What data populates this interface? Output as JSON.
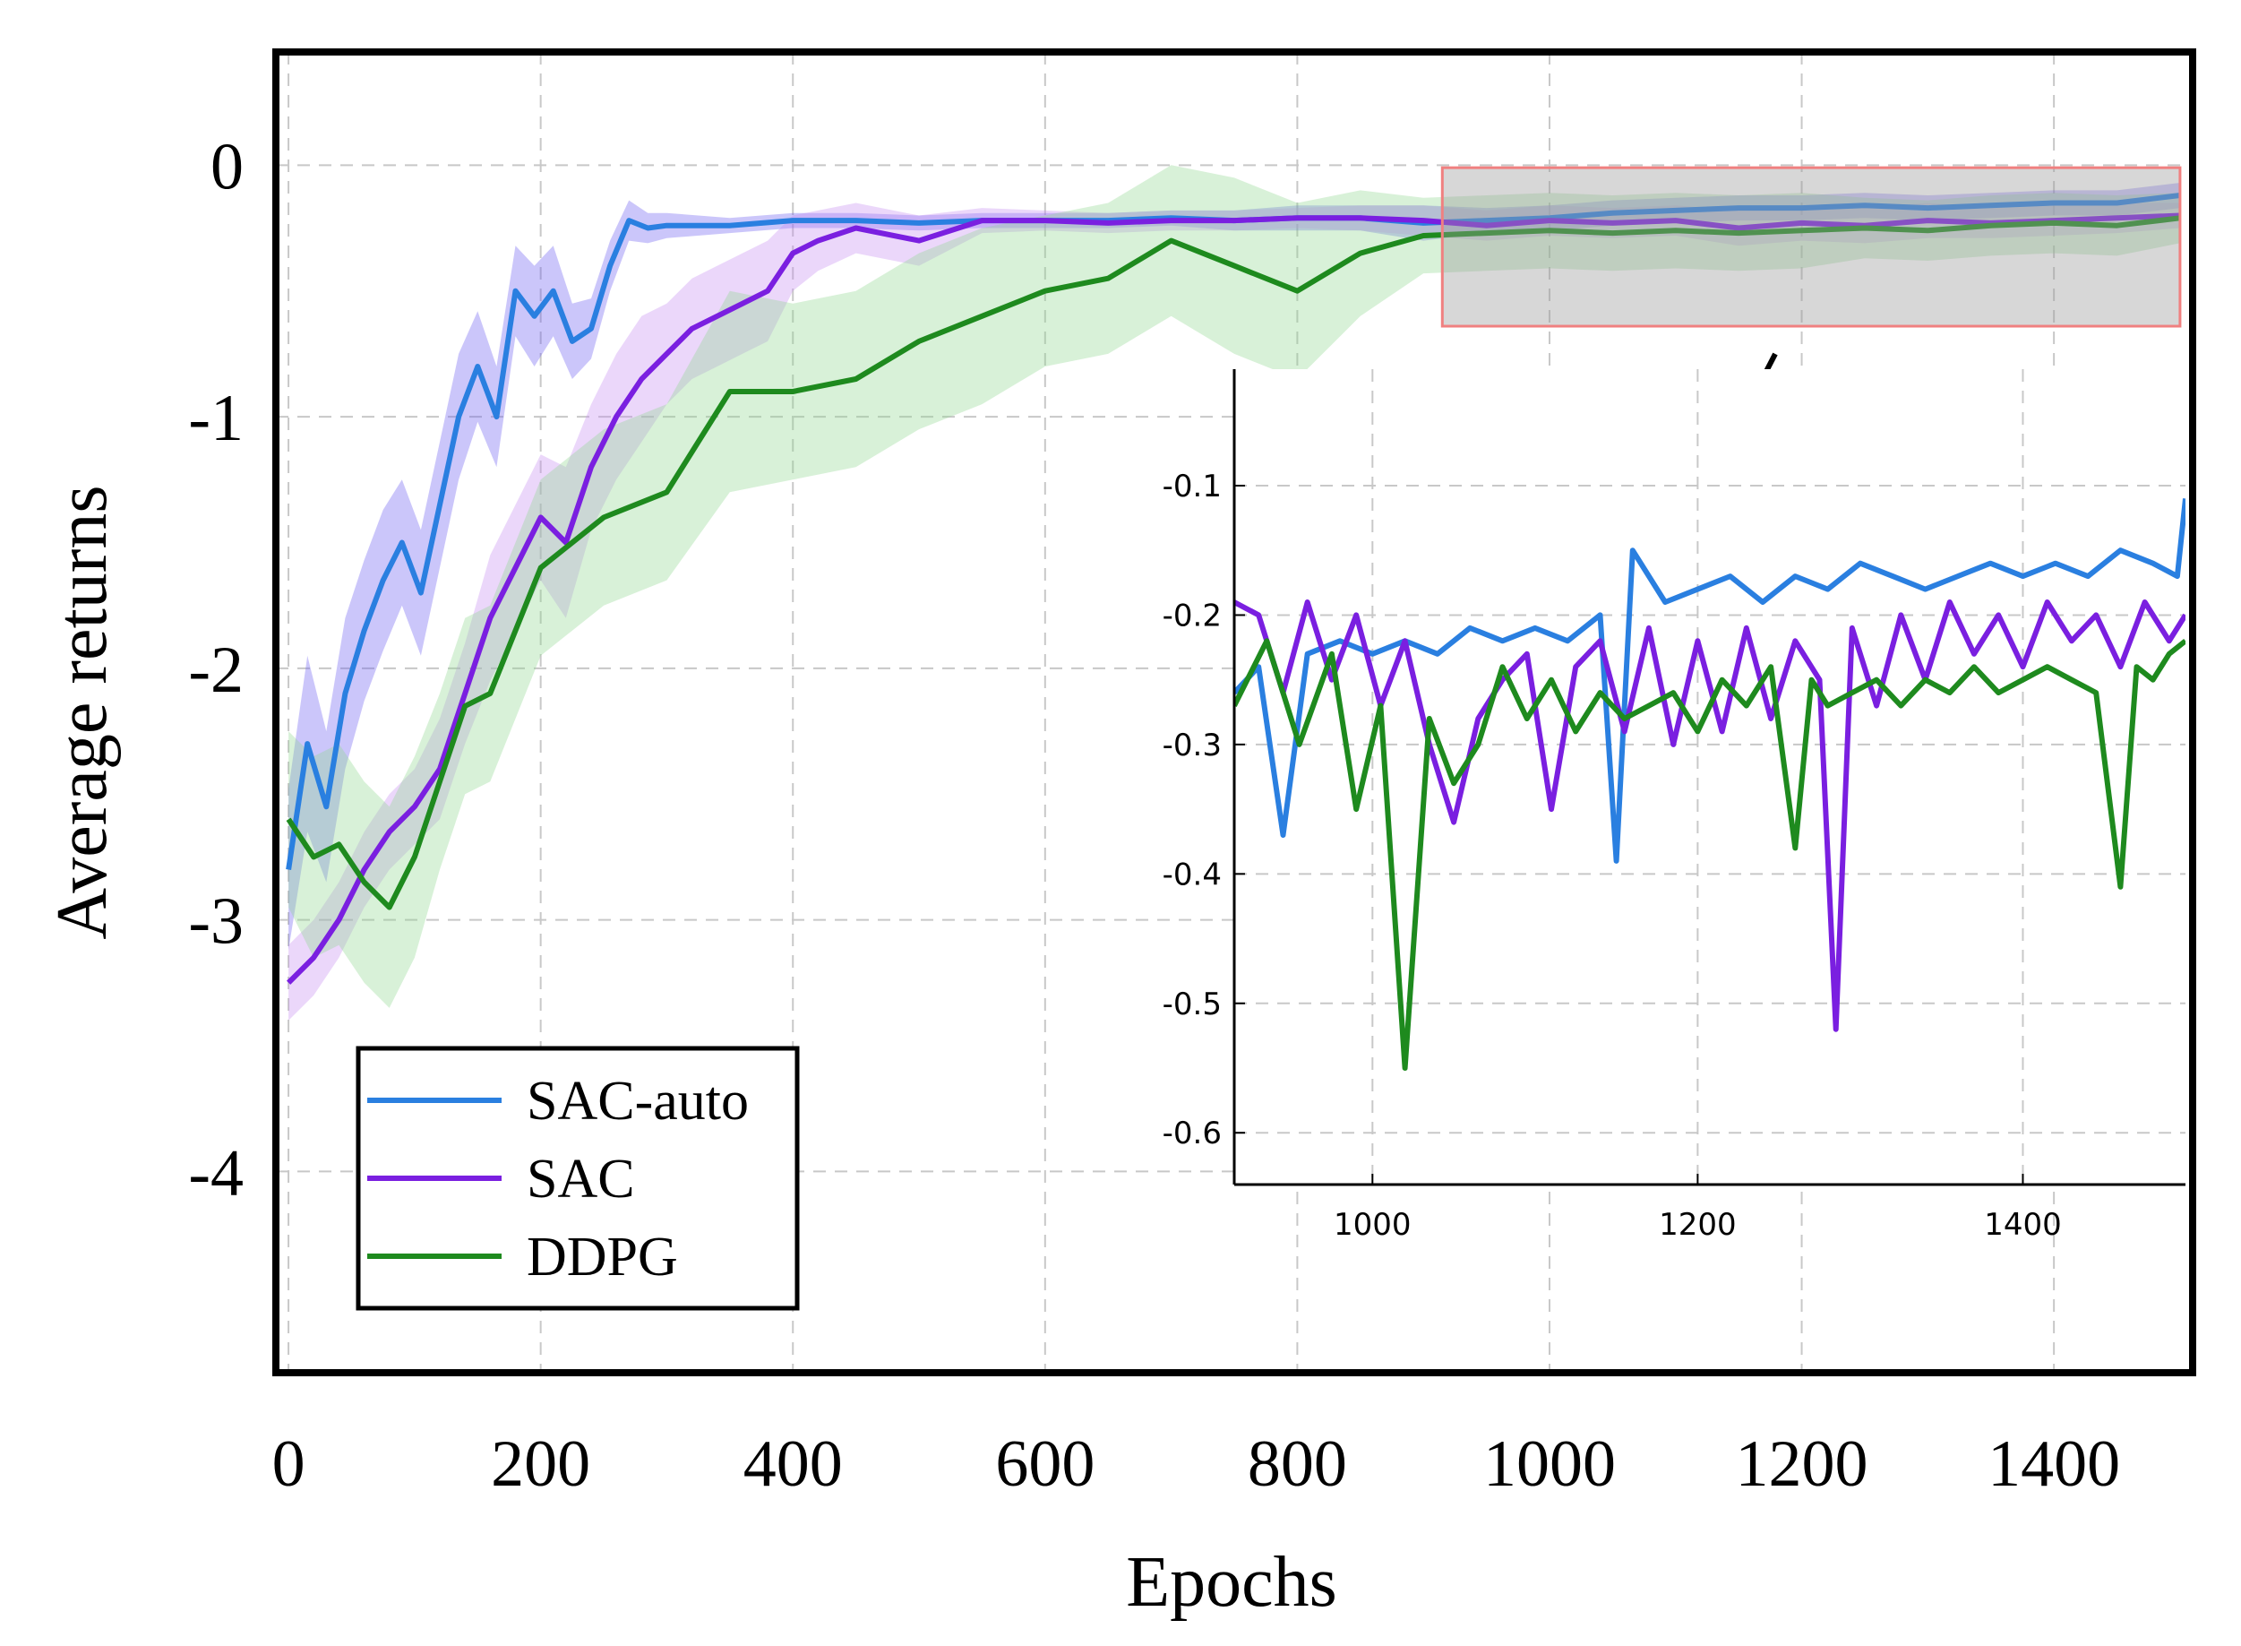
{
  "chart_data": [
    {
      "type": "line",
      "title": "",
      "xlabel": "Epochs",
      "ylabel": "Average  returns",
      "xlim": [
        -10,
        1510
      ],
      "ylim": [
        -4.8,
        0.45
      ],
      "xticks": [
        0,
        200,
        400,
        600,
        800,
        1000,
        1200,
        1400
      ],
      "xtick_labels": [
        "0",
        "200",
        "400",
        "600",
        "800",
        "1000",
        "1200",
        "1400"
      ],
      "yticks": [
        0,
        -1,
        -2,
        -3,
        -4
      ],
      "ytick_labels": [
        "0",
        "-1",
        "-2",
        "-3",
        "-4"
      ],
      "grid": true,
      "legend_position": "bottom-left",
      "highlight_region": {
        "x": [
          915,
          1500
        ],
        "y": [
          -0.64,
          -0.01
        ]
      },
      "series": [
        {
          "name": "SAC-auto",
          "color": "#2a7fe0",
          "band_color": "#6a5cf0",
          "x": [
            0,
            15,
            30,
            45,
            60,
            75,
            90,
            105,
            120,
            135,
            150,
            165,
            180,
            195,
            210,
            225,
            240,
            255,
            270,
            285,
            300,
            350,
            400,
            450,
            500,
            550,
            600,
            650,
            700,
            750,
            800,
            850,
            900,
            950,
            1000,
            1050,
            1100,
            1150,
            1200,
            1250,
            1300,
            1350,
            1400,
            1450,
            1500
          ],
          "values": [
            -2.8,
            -2.3,
            -2.55,
            -2.1,
            -1.85,
            -1.65,
            -1.5,
            -1.7,
            -1.35,
            -1.0,
            -0.8,
            -1.0,
            -0.5,
            -0.6,
            -0.5,
            -0.7,
            -0.65,
            -0.4,
            -0.22,
            -0.25,
            -0.24,
            -0.24,
            -0.22,
            -0.22,
            -0.23,
            -0.22,
            -0.22,
            -0.22,
            -0.21,
            -0.22,
            -0.21,
            -0.21,
            -0.23,
            -0.22,
            -0.21,
            -0.19,
            -0.18,
            -0.17,
            -0.17,
            -0.16,
            -0.17,
            -0.16,
            -0.15,
            -0.15,
            -0.12
          ],
          "band": [
            0.32,
            0.35,
            0.3,
            0.3,
            0.28,
            0.28,
            0.25,
            0.25,
            0.25,
            0.25,
            0.22,
            0.2,
            0.18,
            0.2,
            0.18,
            0.15,
            0.12,
            0.1,
            0.08,
            0.06,
            0.05,
            0.03,
            0.03,
            0.03,
            0.03,
            0.03,
            0.03,
            0.03,
            0.03,
            0.04,
            0.05,
            0.05,
            0.07,
            0.05,
            0.05,
            0.05,
            0.05,
            0.05,
            0.05,
            0.05,
            0.05,
            0.05,
            0.05,
            0.05,
            0.05
          ]
        },
        {
          "name": "SAC",
          "color": "#7a1fe0",
          "band_color": "#c78cf0",
          "x": [
            0,
            20,
            40,
            60,
            80,
            100,
            120,
            140,
            160,
            180,
            200,
            220,
            240,
            260,
            280,
            300,
            320,
            340,
            360,
            380,
            400,
            420,
            450,
            500,
            550,
            600,
            650,
            700,
            750,
            800,
            850,
            900,
            950,
            1000,
            1050,
            1100,
            1150,
            1200,
            1250,
            1300,
            1350,
            1400,
            1450,
            1500
          ],
          "values": [
            -3.25,
            -3.15,
            -3.0,
            -2.8,
            -2.65,
            -2.55,
            -2.4,
            -2.1,
            -1.8,
            -1.6,
            -1.4,
            -1.5,
            -1.2,
            -1.0,
            -0.85,
            -0.75,
            -0.65,
            -0.6,
            -0.55,
            -0.5,
            -0.35,
            -0.3,
            -0.25,
            -0.3,
            -0.22,
            -0.22,
            -0.23,
            -0.22,
            -0.22,
            -0.21,
            -0.21,
            -0.22,
            -0.24,
            -0.22,
            -0.23,
            -0.22,
            -0.25,
            -0.23,
            -0.24,
            -0.22,
            -0.23,
            -0.22,
            -0.21,
            -0.2
          ],
          "band": [
            0.15,
            0.15,
            0.15,
            0.15,
            0.15,
            0.15,
            0.2,
            0.2,
            0.25,
            0.25,
            0.25,
            0.3,
            0.25,
            0.25,
            0.25,
            0.2,
            0.2,
            0.2,
            0.2,
            0.2,
            0.15,
            0.12,
            0.1,
            0.1,
            0.05,
            0.04,
            0.04,
            0.04,
            0.04,
            0.04,
            0.05,
            0.06,
            0.06,
            0.06,
            0.06,
            0.06,
            0.07,
            0.07,
            0.07,
            0.07,
            0.06,
            0.06,
            0.06,
            0.05
          ]
        },
        {
          "name": "DDPG",
          "color": "#1e8a1e",
          "band_color": "#8fd88f",
          "x": [
            0,
            20,
            40,
            60,
            80,
            100,
            120,
            140,
            160,
            180,
            200,
            250,
            300,
            350,
            400,
            450,
            500,
            550,
            600,
            650,
            700,
            750,
            800,
            850,
            900,
            950,
            1000,
            1050,
            1100,
            1150,
            1200,
            1250,
            1300,
            1350,
            1400,
            1450,
            1500
          ],
          "values": [
            -2.6,
            -2.75,
            -2.7,
            -2.85,
            -2.95,
            -2.75,
            -2.45,
            -2.15,
            -2.1,
            -1.85,
            -1.6,
            -1.4,
            -1.3,
            -0.9,
            -0.9,
            -0.85,
            -0.7,
            -0.6,
            -0.5,
            -0.45,
            -0.3,
            -0.4,
            -0.5,
            -0.35,
            -0.28,
            -0.27,
            -0.26,
            -0.27,
            -0.26,
            -0.27,
            -0.26,
            -0.25,
            -0.26,
            -0.24,
            -0.23,
            -0.24,
            -0.21
          ],
          "band": [
            0.35,
            0.4,
            0.4,
            0.4,
            0.4,
            0.4,
            0.35,
            0.35,
            0.35,
            0.35,
            0.35,
            0.35,
            0.35,
            0.4,
            0.35,
            0.35,
            0.35,
            0.35,
            0.3,
            0.3,
            0.3,
            0.35,
            0.35,
            0.25,
            0.15,
            0.15,
            0.15,
            0.15,
            0.15,
            0.15,
            0.15,
            0.12,
            0.12,
            0.12,
            0.12,
            0.12,
            0.1
          ]
        }
      ]
    },
    {
      "type": "line",
      "title": "",
      "xlabel": "",
      "ylabel": "",
      "xlim": [
        915,
        1500
      ],
      "ylim": [
        -0.64,
        -0.01
      ],
      "xticks": [
        1000,
        1200,
        1400
      ],
      "xtick_labels": [
        "1000",
        "1200",
        "1400"
      ],
      "yticks": [
        -0.1,
        -0.2,
        -0.3,
        -0.4,
        -0.5,
        -0.6
      ],
      "ytick_labels": [
        "-0.1",
        "-0.2",
        "-0.3",
        "-0.4",
        "-0.5",
        "-0.6"
      ],
      "grid": true,
      "series": [
        {
          "name": "SAC-auto",
          "color": "#2a7fe0",
          "x": [
            915,
            930,
            945,
            960,
            980,
            1000,
            1020,
            1040,
            1060,
            1080,
            1100,
            1120,
            1140,
            1150,
            1160,
            1180,
            1200,
            1220,
            1240,
            1260,
            1280,
            1300,
            1320,
            1340,
            1360,
            1380,
            1400,
            1420,
            1440,
            1460,
            1480,
            1495,
            1500
          ],
          "values": [
            -0.26,
            -0.24,
            -0.37,
            -0.23,
            -0.22,
            -0.23,
            -0.22,
            -0.23,
            -0.21,
            -0.22,
            -0.21,
            -0.22,
            -0.2,
            -0.39,
            -0.15,
            -0.19,
            -0.18,
            -0.17,
            -0.19,
            -0.17,
            -0.18,
            -0.16,
            -0.17,
            -0.18,
            -0.17,
            -0.16,
            -0.17,
            -0.16,
            -0.17,
            -0.15,
            -0.16,
            -0.17,
            -0.11
          ]
        },
        {
          "name": "SAC",
          "color": "#7a1fe0",
          "x": [
            915,
            930,
            945,
            960,
            975,
            990,
            1005,
            1020,
            1035,
            1050,
            1065,
            1080,
            1095,
            1110,
            1125,
            1140,
            1155,
            1170,
            1185,
            1200,
            1215,
            1230,
            1245,
            1260,
            1275,
            1285,
            1295,
            1310,
            1325,
            1340,
            1355,
            1370,
            1385,
            1400,
            1415,
            1430,
            1445,
            1460,
            1475,
            1490,
            1500
          ],
          "values": [
            -0.19,
            -0.2,
            -0.26,
            -0.19,
            -0.25,
            -0.2,
            -0.27,
            -0.22,
            -0.3,
            -0.36,
            -0.28,
            -0.25,
            -0.23,
            -0.35,
            -0.24,
            -0.22,
            -0.29,
            -0.21,
            -0.3,
            -0.22,
            -0.29,
            -0.21,
            -0.28,
            -0.22,
            -0.25,
            -0.52,
            -0.21,
            -0.27,
            -0.2,
            -0.25,
            -0.19,
            -0.23,
            -0.2,
            -0.24,
            -0.19,
            -0.22,
            -0.2,
            -0.24,
            -0.19,
            -0.22,
            -0.2
          ]
        },
        {
          "name": "DDPG",
          "color": "#1e8a1e",
          "x": [
            915,
            935,
            955,
            975,
            990,
            1005,
            1020,
            1035,
            1050,
            1065,
            1080,
            1095,
            1110,
            1125,
            1140,
            1155,
            1170,
            1185,
            1200,
            1215,
            1230,
            1245,
            1260,
            1270,
            1280,
            1295,
            1310,
            1325,
            1340,
            1355,
            1370,
            1385,
            1400,
            1415,
            1430,
            1445,
            1460,
            1470,
            1480,
            1490,
            1500
          ],
          "values": [
            -0.27,
            -0.22,
            -0.3,
            -0.23,
            -0.35,
            -0.27,
            -0.55,
            -0.28,
            -0.33,
            -0.3,
            -0.24,
            -0.28,
            -0.25,
            -0.29,
            -0.26,
            -0.28,
            -0.27,
            -0.26,
            -0.29,
            -0.25,
            -0.27,
            -0.24,
            -0.38,
            -0.25,
            -0.27,
            -0.26,
            -0.25,
            -0.27,
            -0.25,
            -0.26,
            -0.24,
            -0.26,
            -0.25,
            -0.24,
            -0.25,
            -0.26,
            -0.41,
            -0.24,
            -0.25,
            -0.23,
            -0.22
          ]
        }
      ]
    }
  ]
}
